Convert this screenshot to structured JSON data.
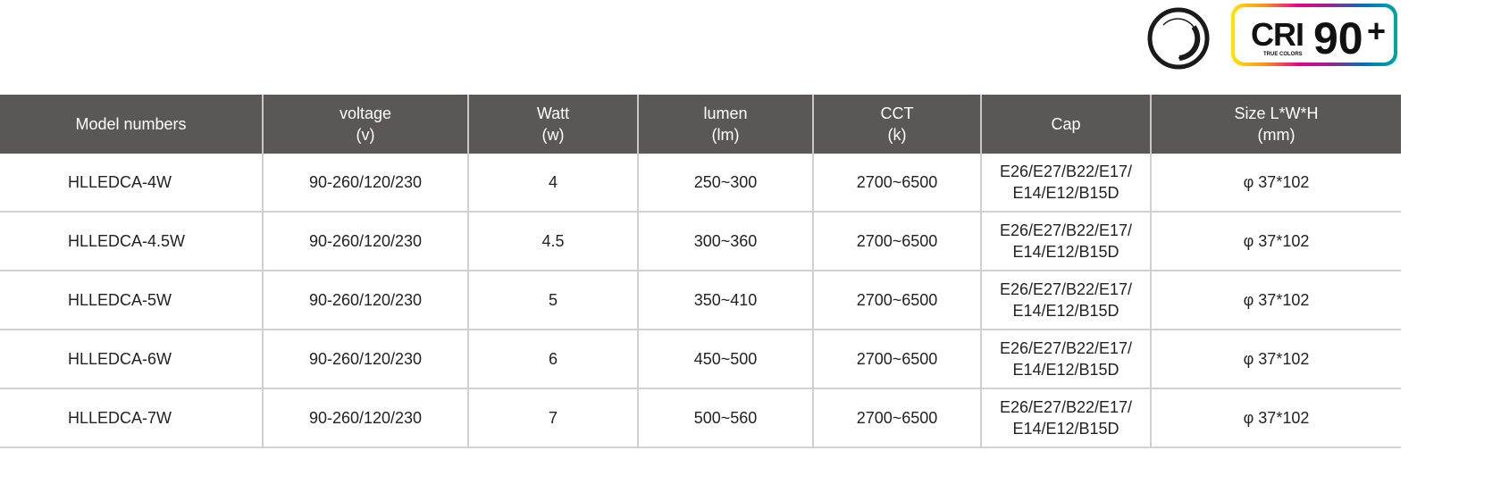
{
  "badges": {
    "dimmable_icon": "dimmable-icon",
    "cri": {
      "label": "CRI",
      "value": "90",
      "plus": "+",
      "subtitle": "TRUE COLORS"
    }
  },
  "table": {
    "headers": [
      [
        "Model numbers",
        ""
      ],
      [
        "voltage",
        "(v)"
      ],
      [
        "Watt",
        "(w)"
      ],
      [
        "lumen",
        "(lm)"
      ],
      [
        "CCT",
        "(k)"
      ],
      [
        "Cap",
        ""
      ],
      [
        "Size L*W*H",
        "(mm)"
      ]
    ],
    "rows": [
      [
        "HLLEDCA-4W",
        "90-260/120/230",
        "4",
        "250~300",
        "2700~6500",
        "E26/E27/B22/E17/",
        "E14/E12/B15D",
        "φ 37*102"
      ],
      [
        "HLLEDCA-4.5W",
        "90-260/120/230",
        "4.5",
        "300~360",
        "2700~6500",
        "E26/E27/B22/E17/",
        "E14/E12/B15D",
        "φ 37*102"
      ],
      [
        "HLLEDCA-5W",
        "90-260/120/230",
        "5",
        "350~410",
        "2700~6500",
        "E26/E27/B22/E17/",
        "E14/E12/B15D",
        "φ 37*102"
      ],
      [
        "HLLEDCA-6W",
        "90-260/120/230",
        "6",
        "450~500",
        "2700~6500",
        "E26/E27/B22/E17/",
        "E14/E12/B15D",
        "φ 37*102"
      ],
      [
        "HLLEDCA-7W",
        "90-260/120/230",
        "7",
        "500~560",
        "2700~6500",
        "E26/E27/B22/E17/",
        "E14/E12/B15D",
        "φ 37*102"
      ]
    ]
  },
  "colors": {
    "header_bg": "#5b5757",
    "grid": "#d0d0d0"
  }
}
